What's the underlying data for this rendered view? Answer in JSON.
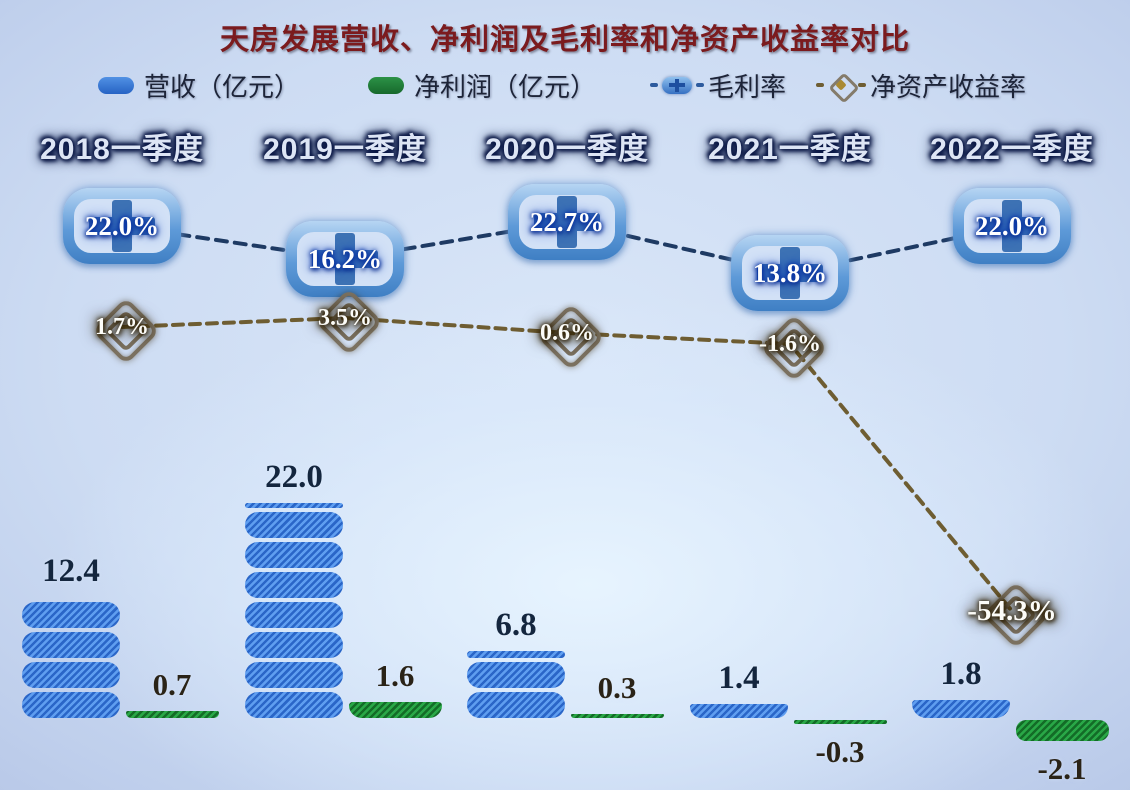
{
  "title": "天房发展营收、净利润及毛利率和净资产收益率对比",
  "legend": [
    {
      "label": "营收（亿元）",
      "swatch": "blue-pill-swatch",
      "color": "#2e74d2"
    },
    {
      "label": "净利润（亿元）",
      "swatch": "green-pill-swatch",
      "color": "#1d7e33"
    },
    {
      "label": "毛利率",
      "swatch": "blue-plus-line-marker",
      "color": "#2d5b9e"
    },
    {
      "label": "净资产收益率",
      "swatch": "diamond-line-marker",
      "color": "#7b7160"
    }
  ],
  "chart_data": {
    "type": "bar",
    "subtype": "pictorial bar + line combo, no axes, data labels only",
    "title": "天房发展营收、净利润及毛利率和净资产收益率对比",
    "categories": [
      "2018一季度",
      "2019一季度",
      "2020一季度",
      "2021一季度",
      "2022一季度"
    ],
    "series": [
      {
        "name": "营收（亿元）",
        "type": "bar",
        "color": "#3b82dc",
        "values": [
          12.4,
          22.0,
          6.8,
          1.4,
          1.8
        ],
        "labels": [
          "12.4",
          "22.0",
          "6.8",
          "1.4",
          "1.8"
        ]
      },
      {
        "name": "净利润（亿元）",
        "type": "bar",
        "color": "#1f8c36",
        "values": [
          0.7,
          1.6,
          0.3,
          -0.3,
          -2.1
        ],
        "labels": [
          "0.7",
          "1.6",
          "0.3",
          "-0.3",
          "-2.1"
        ]
      },
      {
        "name": "毛利率",
        "type": "line",
        "line_style": "dashed",
        "color": "#1e3a63",
        "values": [
          22.0,
          16.2,
          22.7,
          13.8,
          22.0
        ],
        "labels": [
          "22.0%",
          "16.2%",
          "22.7%",
          "13.8%",
          "22.0%"
        ]
      },
      {
        "name": "净资产收益率",
        "type": "line",
        "line_style": "dashed",
        "color": "#6e5d32",
        "values": [
          1.7,
          3.5,
          0.6,
          -1.6,
          -54.3
        ],
        "labels": [
          "1.7%",
          "3.5%",
          "0.6%",
          "-1.6%",
          "-54.3%"
        ]
      }
    ],
    "legend_position": "top",
    "grid": false,
    "colors": {
      "background_top": "#bfcfec",
      "background_center": "#e3f1fd",
      "title": "#7b1b1e",
      "revenue_bar": "#3b82dc",
      "net_profit_bar": "#1f8c36",
      "gross_margin_line": "#1e3a63",
      "roe_line": "#6e5d32",
      "category_label_fill": "#dde5f5",
      "category_label_glow": "#0a1745"
    }
  }
}
